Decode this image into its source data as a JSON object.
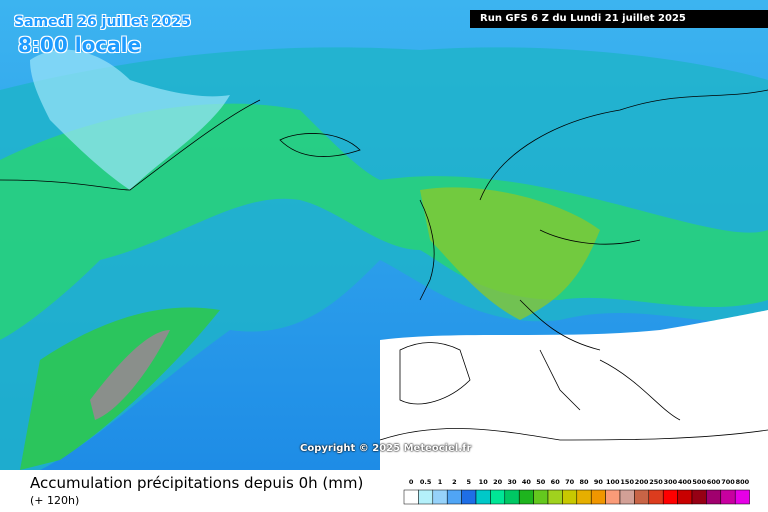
{
  "header": {
    "date": "Samedi 26 juillet 2025",
    "time": "8:00 locale",
    "run": "Run GFS 6 Z du Lundi 21 juillet 2025"
  },
  "copyright": "Copyright © 2025 Meteociel.fr",
  "footer": {
    "title": "Accumulation précipitations depuis 0h (mm)",
    "subtitle": "(+ 120h)"
  },
  "legend": {
    "values": [
      0,
      0.5,
      1,
      2,
      5,
      10,
      20,
      30,
      40,
      50,
      60,
      70,
      80,
      90,
      100,
      150,
      200,
      250,
      300,
      400,
      500,
      600,
      700,
      800
    ],
    "colors": [
      "#ffffff",
      "#b4f0fa",
      "#96d2fa",
      "#50a5f5",
      "#1e6ee6",
      "#00c8c8",
      "#00e696",
      "#00c864",
      "#1eb41e",
      "#64c81e",
      "#a0d21e",
      "#c8c800",
      "#e6af00",
      "#f09600",
      "#fa9b78",
      "#d2a096",
      "#c86446",
      "#dc3c1e",
      "#ff0000",
      "#c80000",
      "#960014",
      "#a0006e",
      "#c800a0",
      "#e600e6"
    ]
  }
}
